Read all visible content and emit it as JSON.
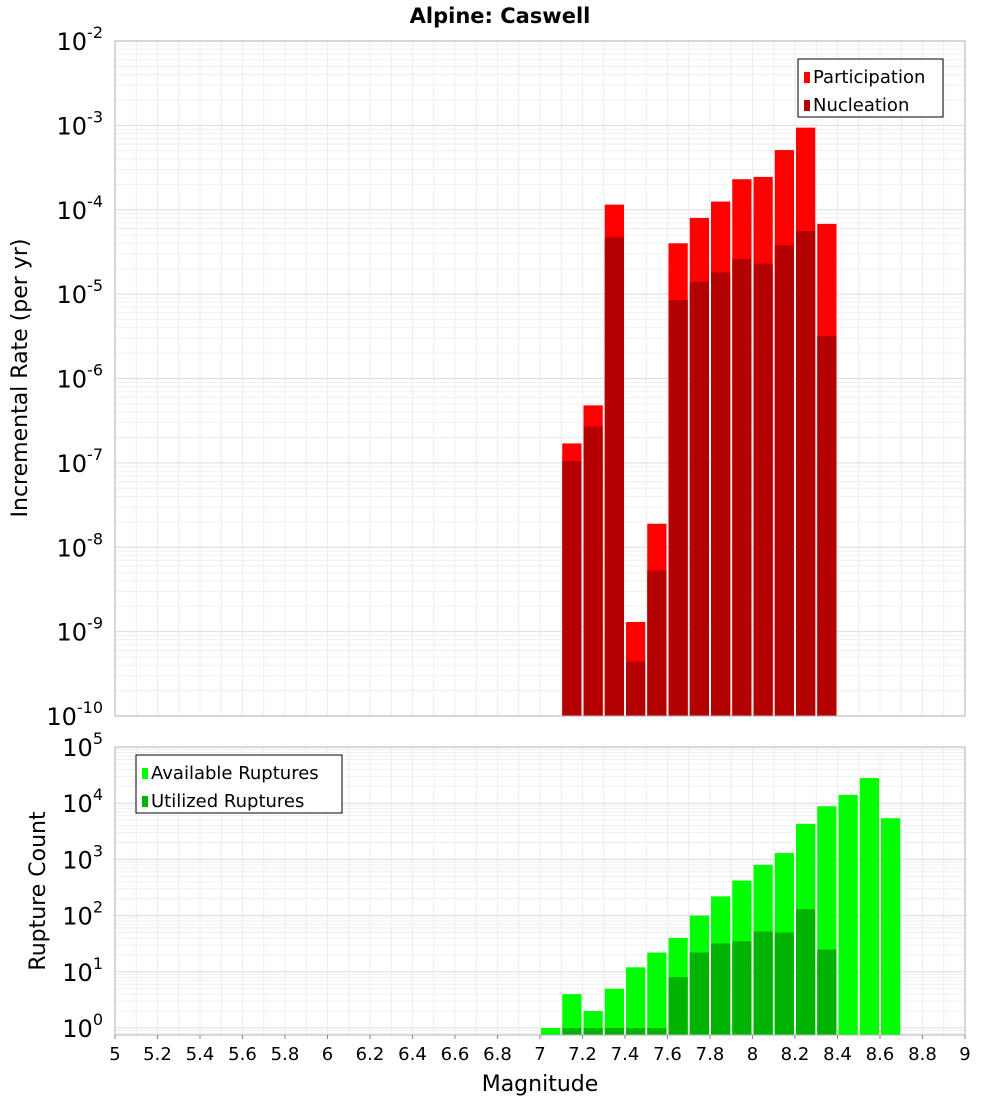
{
  "title": "Alpine: Caswell",
  "colors": {
    "participation": "#ff0000",
    "nucleation": "#b30000",
    "available": "#00ff00",
    "utilized": "#00b300",
    "grid": "#e6e6e6",
    "frame": "#b0b0b0",
    "legend_border": "#000000"
  },
  "chart_data": [
    {
      "type": "bar",
      "title": "Alpine: Caswell",
      "xlabel": "",
      "ylabel": "Incremental Rate (per yr)",
      "yscale": "log",
      "ylim": [
        1e-10,
        0.01
      ],
      "xlim": [
        5,
        9
      ],
      "grid": true,
      "legend_position": "top-right",
      "y_ticks": [
        {
          "base": "10",
          "exp": "-2"
        },
        {
          "base": "10",
          "exp": "-3"
        },
        {
          "base": "10",
          "exp": "-4"
        },
        {
          "base": "10",
          "exp": "-5"
        },
        {
          "base": "10",
          "exp": "-6"
        },
        {
          "base": "10",
          "exp": "-7"
        },
        {
          "base": "10",
          "exp": "-8"
        },
        {
          "base": "10",
          "exp": "-9"
        },
        {
          "base": "10",
          "exp": "-10"
        }
      ],
      "series": [
        {
          "name": "Participation",
          "color": "#ff0000",
          "x": [
            7.15,
            7.25,
            7.35,
            7.45,
            7.55,
            7.65,
            7.75,
            7.85,
            7.95,
            8.05,
            8.15,
            8.25,
            8.35
          ],
          "values": [
            1.7e-07,
            4.8e-07,
            0.000115,
            1.3e-09,
            1.9e-08,
            4e-05,
            8e-05,
            0.000125,
            0.00023,
            0.000245,
            0.00051,
            0.00094,
            6.8e-05
          ]
        },
        {
          "name": "Nucleation",
          "color": "#b30000",
          "x": [
            7.15,
            7.25,
            7.35,
            7.45,
            7.55,
            7.65,
            7.75,
            7.85,
            7.95,
            8.05,
            8.15,
            8.25,
            8.35
          ],
          "values": [
            1.05e-07,
            2.7e-07,
            4.7e-05,
            4.4e-10,
            5.3e-09,
            8.5e-06,
            1.4e-05,
            1.8e-05,
            2.6e-05,
            2.3e-05,
            3.8e-05,
            5.6e-05,
            3.2e-06
          ]
        }
      ]
    },
    {
      "type": "bar",
      "title": "",
      "xlabel": "Magnitude",
      "ylabel": "Rupture Count",
      "yscale": "log",
      "ylim": [
        0.75,
        100000
      ],
      "xlim": [
        5,
        9
      ],
      "grid": true,
      "legend_position": "top-left",
      "x_ticks": [
        "5",
        "5.2",
        "5.4",
        "5.6",
        "5.8",
        "6",
        "6.2",
        "6.4",
        "6.6",
        "6.8",
        "7",
        "7.2",
        "7.4",
        "7.6",
        "7.8",
        "8",
        "8.2",
        "8.4",
        "8.6",
        "8.8",
        "9"
      ],
      "y_ticks": [
        {
          "base": "10",
          "exp": "5"
        },
        {
          "base": "10",
          "exp": "4"
        },
        {
          "base": "10",
          "exp": "3"
        },
        {
          "base": "10",
          "exp": "2"
        },
        {
          "base": "10",
          "exp": "1"
        },
        {
          "base": "10",
          "exp": "0"
        }
      ],
      "series": [
        {
          "name": "Available Ruptures",
          "color": "#00ff00",
          "x": [
            7.05,
            7.15,
            7.25,
            7.35,
            7.45,
            7.55,
            7.65,
            7.75,
            7.85,
            7.95,
            8.05,
            8.15,
            8.25,
            8.35,
            8.45,
            8.55,
            8.65
          ],
          "values": [
            1,
            4,
            2,
            5,
            12,
            22,
            40,
            100,
            220,
            420,
            800,
            1300,
            4300,
            8800,
            14000,
            28000,
            5400
          ]
        },
        {
          "name": "Utilized Ruptures",
          "color": "#00b300",
          "x": [
            7.15,
            7.25,
            7.35,
            7.45,
            7.55,
            7.65,
            7.75,
            7.85,
            7.95,
            8.05,
            8.15,
            8.25,
            8.35
          ],
          "values": [
            1,
            1,
            1,
            1,
            1,
            8,
            22,
            32,
            35,
            52,
            50,
            130,
            25
          ]
        }
      ]
    }
  ]
}
